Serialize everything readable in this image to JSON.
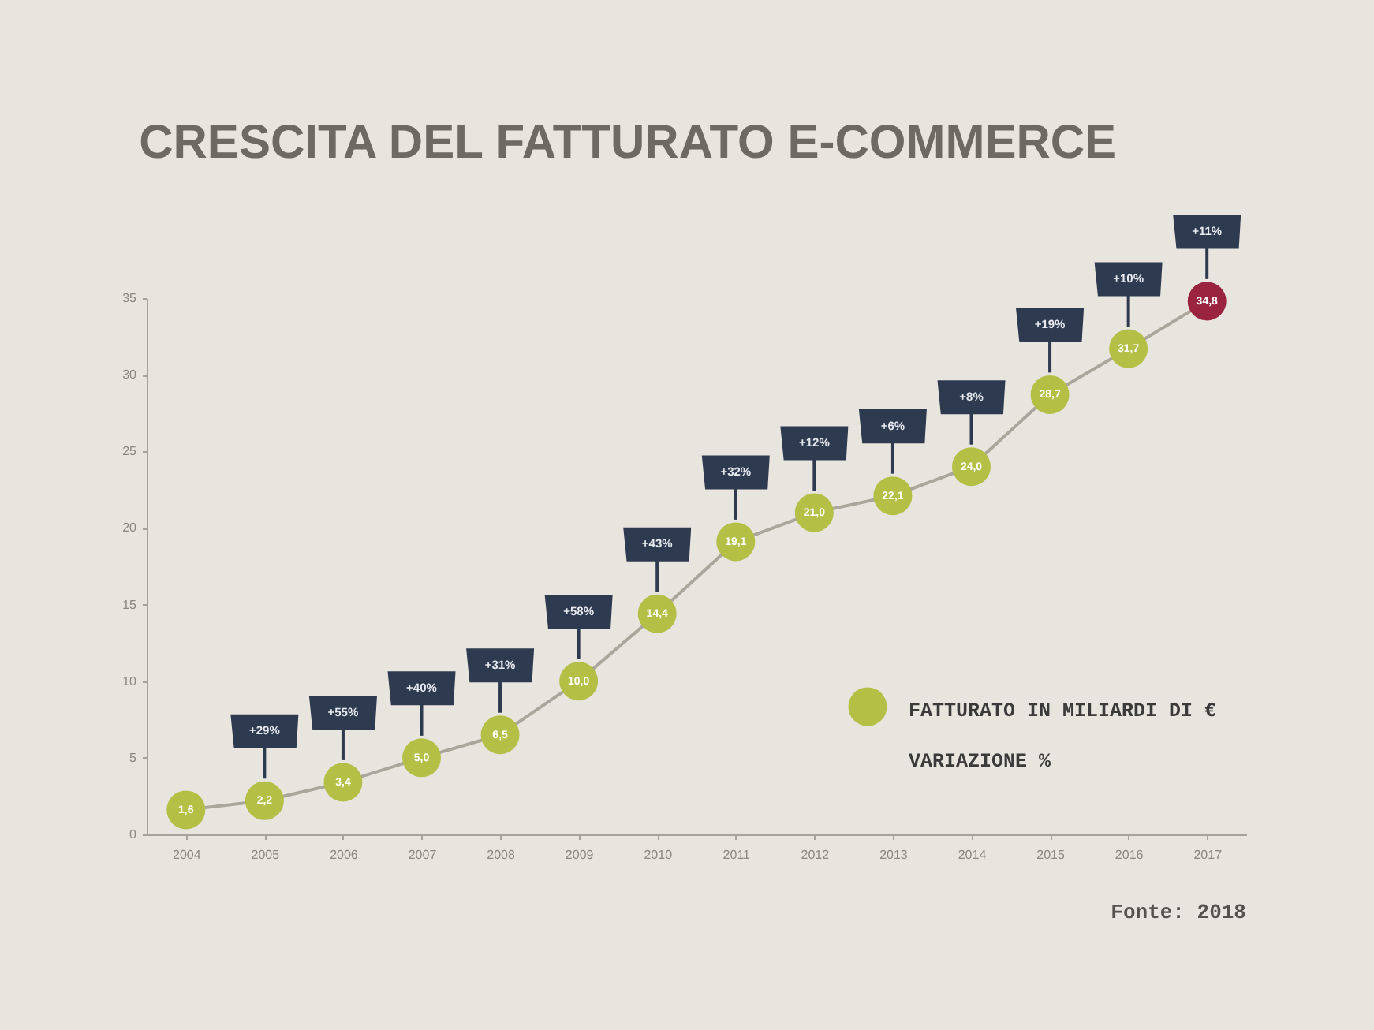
{
  "chart_data": {
    "type": "line",
    "title": "CRESCITA DEL FATTURATO E-COMMERCE",
    "categories": [
      "2004",
      "2005",
      "2006",
      "2007",
      "2008",
      "2009",
      "2010",
      "2011",
      "2012",
      "2013",
      "2014",
      "2015",
      "2016",
      "2017"
    ],
    "series": [
      {
        "name": "FATTURATO IN MILIARDI DI €",
        "color": "#aaa69b",
        "colors": [
          "#b3bf45",
          "#b3bf45",
          "#b3bf45",
          "#b3bf45",
          "#b3bf45",
          "#b3bf45",
          "#b3bf45",
          "#b3bf45",
          "#b3bf45",
          "#b3bf45",
          "#b3bf45",
          "#b3bf45",
          "#b3bf45",
          "#9a2340"
        ],
        "values": [
          1.6,
          2.2,
          3.4,
          5.0,
          6.5,
          10.0,
          14.4,
          19.1,
          21.0,
          22.1,
          24.0,
          28.7,
          31.7,
          34.8
        ],
        "value_labels": [
          "1,6",
          "2,2",
          "3,4",
          "5,0",
          "6,5",
          "10,0",
          "14,4",
          "19,1",
          "21,0",
          "22,1",
          "24,0",
          "28,7",
          "31,7",
          "34,8"
        ]
      }
    ],
    "ylim": [
      0,
      35
    ],
    "yticks": [
      0,
      5,
      10,
      15,
      20,
      25,
      30,
      35
    ],
    "marker": "circle",
    "legend": "bottom right",
    "legend_title": "VARIAZIONE %",
    "annotations": [
      {
        "text": "+29%",
        "x": "2005"
      },
      {
        "text": "+55%",
        "x": "2006"
      },
      {
        "text": "+40%",
        "x": "2007"
      },
      {
        "text": "+31%",
        "x": "2008"
      },
      {
        "text": "+58%",
        "x": "2009"
      },
      {
        "text": "+43%",
        "x": "2010"
      },
      {
        "text": "+32%",
        "x": "2011"
      },
      {
        "text": "+12%",
        "x": "2012"
      },
      {
        "text": "+6%",
        "x": "2013"
      },
      {
        "text": "+8%",
        "x": "2014"
      },
      {
        "text": "+19%",
        "x": "2015"
      },
      {
        "text": "+10%",
        "x": "2016"
      },
      {
        "text": "+11%",
        "x": "2017"
      },
      "Fonte: 2018"
    ]
  }
}
